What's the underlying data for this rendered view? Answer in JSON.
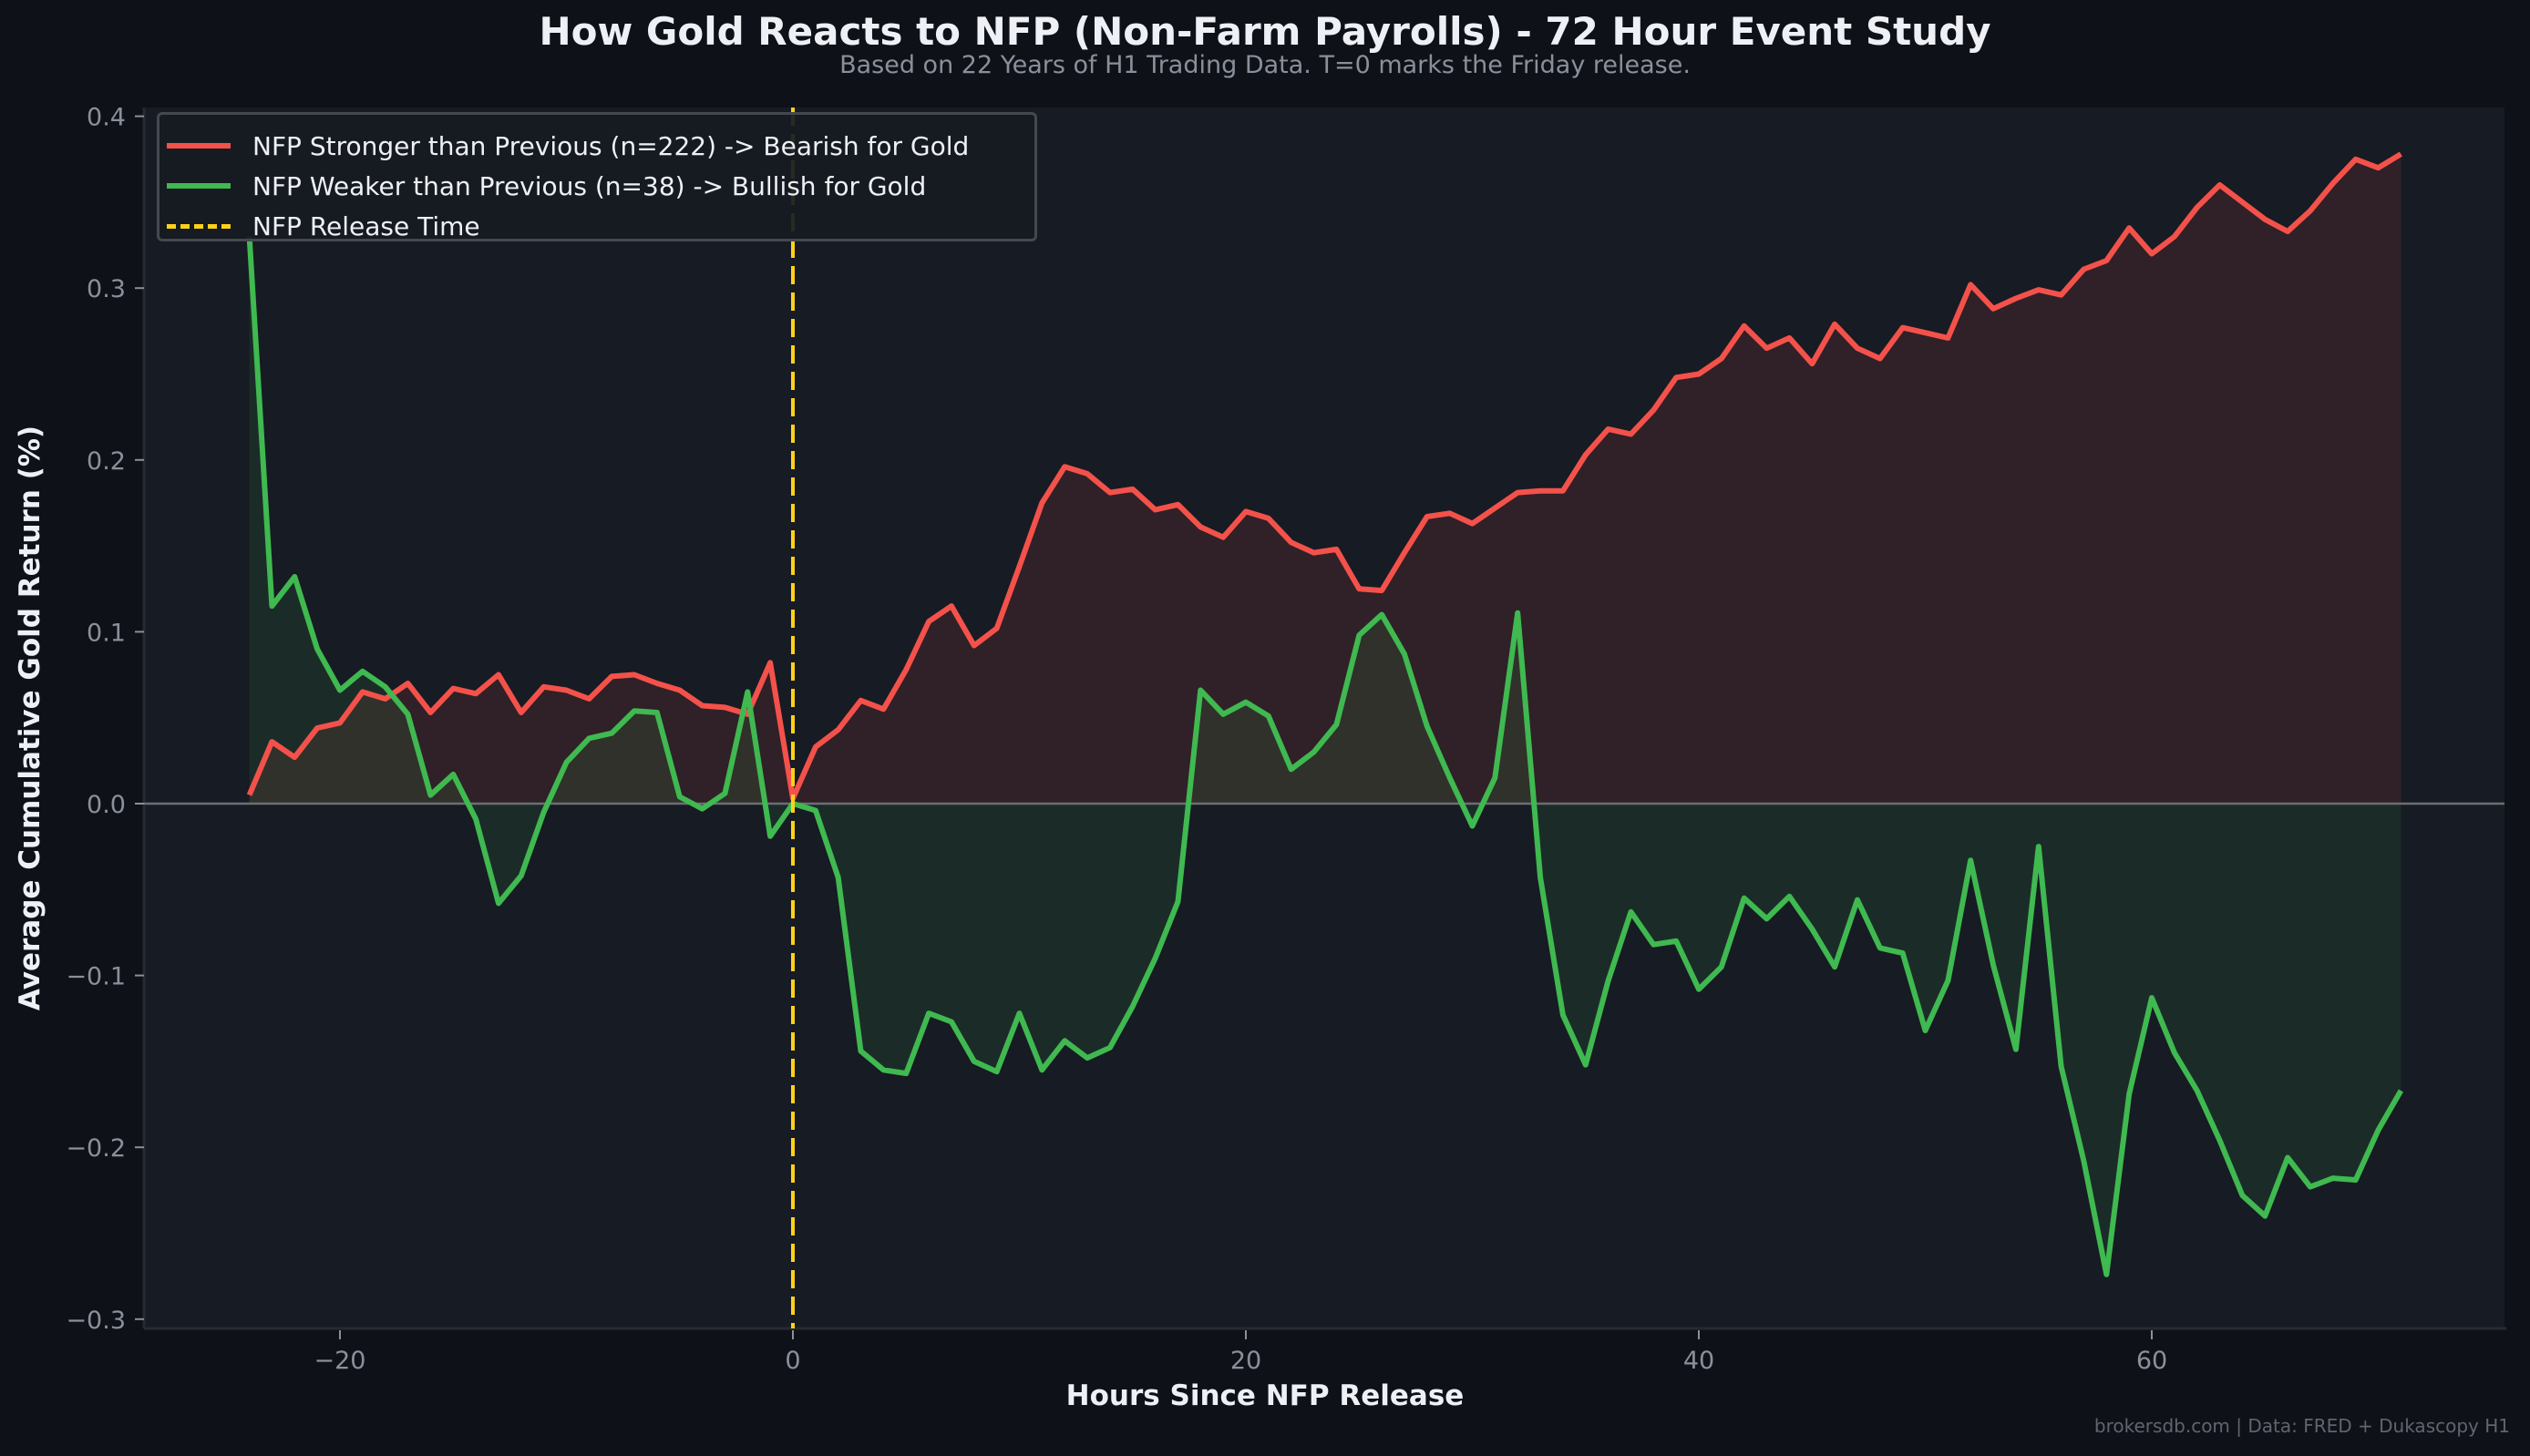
{
  "header": {
    "title": "How Gold Reacts to NFP (Non-Farm Payrolls) - 72 Hour Event Study",
    "subtitle": "Based on 22 Years of H1 Trading Data. T=0 marks the Friday release."
  },
  "axes": {
    "xlabel": "Hours Since NFP Release",
    "ylabel": "Average Cumulative Gold Return (%)",
    "x_ticks": [
      "−20",
      "0",
      "20",
      "40",
      "60"
    ],
    "x_tick_values": [
      -20,
      0,
      20,
      40,
      60
    ],
    "y_ticks": [
      "0.4",
      "0.3",
      "0.2",
      "0.1",
      "0.0",
      "−0.1",
      "−0.2",
      "−0.3"
    ],
    "y_tick_values": [
      0.4,
      0.3,
      0.2,
      0.1,
      0.0,
      -0.1,
      -0.2,
      -0.3
    ]
  },
  "legend": {
    "items": [
      {
        "label": "NFP Stronger than Previous (n=222) -> Bearish for Gold",
        "color": "#f4514b",
        "style": "solid"
      },
      {
        "label": "NFP Weaker than Previous (n=38) -> Bullish for Gold",
        "color": "#3fb950",
        "style": "solid"
      },
      {
        "label": "NFP Release Time",
        "color": "#ffd21a",
        "style": "dashed"
      }
    ]
  },
  "footer": {
    "credit": "brokersdb.com  |  Data: FRED + Dukascopy H1"
  },
  "colors": {
    "background": "#0e1118",
    "plot_background": "#171b23",
    "stronger": "#f4514b",
    "weaker": "#3fb950",
    "release_line": "#ffd21a",
    "zero_line": "#6b6f75"
  },
  "chart_data": {
    "type": "line",
    "title": "How Gold Reacts to NFP (Non-Farm Payrolls) - 72 Hour Event Study",
    "subtitle": "Based on 22 Years of H1 Trading Data. T=0 marks the Friday release.",
    "xlabel": "Hours Since NFP Release",
    "ylabel": "Average Cumulative Gold Return (%)",
    "xlim": [
      -28.3,
      75.9
    ],
    "ylim": [
      -0.305,
      0.41
    ],
    "grid": false,
    "legend_position": "upper left",
    "annotations": [
      {
        "type": "vline",
        "x": 0,
        "label": "NFP Release Time",
        "style": "dashed",
        "color": "#ffd21a"
      },
      {
        "type": "hline",
        "y": 0,
        "color": "#6b6f75"
      }
    ],
    "x": [
      -24,
      -23,
      -22,
      -21,
      -20,
      -19,
      -18,
      -17,
      -16,
      -15,
      -14,
      -13,
      -12,
      -11,
      -10,
      -9,
      -8,
      -7,
      -6,
      -5,
      -4,
      -3,
      -2,
      -1,
      0,
      1,
      2,
      3,
      4,
      5,
      6,
      7,
      8,
      9,
      10,
      11,
      12,
      13,
      14,
      15,
      16,
      17,
      18,
      19,
      20,
      21,
      22,
      23,
      24,
      25,
      26,
      27,
      28,
      29,
      30,
      31,
      32,
      33,
      34,
      35,
      36,
      37,
      38,
      39,
      40,
      41,
      42,
      43,
      44,
      45,
      46,
      47,
      48,
      49,
      50,
      51,
      52,
      53,
      54,
      55,
      56,
      57,
      58,
      59,
      60,
      61,
      62,
      63,
      64,
      65,
      66,
      67,
      68,
      69,
      70,
      71
    ],
    "series": [
      {
        "name": "NFP Stronger than Previous (n=222) -> Bearish for Gold",
        "color": "#f4514b",
        "values": [
          0.005,
          0.036,
          0.027,
          0.044,
          0.047,
          0.065,
          0.061,
          0.07,
          0.053,
          0.067,
          0.064,
          0.075,
          0.053,
          0.068,
          0.066,
          0.061,
          0.074,
          0.075,
          0.07,
          0.066,
          0.057,
          0.056,
          0.052,
          0.082,
          0.003,
          0.033,
          0.043,
          0.06,
          0.055,
          0.078,
          0.106,
          0.115,
          0.092,
          0.102,
          0.138,
          0.175,
          0.196,
          0.192,
          0.181,
          0.183,
          0.171,
          0.174,
          0.161,
          0.155,
          0.17,
          0.166,
          0.152,
          0.146,
          0.148,
          0.125,
          0.124,
          0.146,
          0.167,
          0.169,
          0.163,
          0.172,
          0.181,
          0.182,
          0.182,
          0.203,
          0.218,
          0.215,
          0.229,
          0.248,
          0.25,
          0.259,
          0.278,
          0.265,
          0.271,
          0.256,
          0.279,
          0.265,
          0.259,
          0.277,
          0.274,
          0.271,
          0.302,
          0.288,
          0.294,
          0.299,
          0.296,
          0.311,
          0.316,
          0.335,
          0.32,
          0.33,
          0.347,
          0.36,
          0.35,
          0.34,
          0.333,
          0.345,
          0.361,
          0.375,
          0.37,
          0.378
        ]
      },
      {
        "name": "NFP Weaker than Previous (n=38) -> Bullish for Gold",
        "color": "#3fb950",
        "values": [
          0.33,
          0.115,
          0.132,
          0.09,
          0.066,
          0.077,
          0.068,
          0.052,
          0.005,
          0.017,
          -0.009,
          -0.058,
          -0.042,
          -0.005,
          0.024,
          0.038,
          0.041,
          0.054,
          0.053,
          0.004,
          -0.003,
          0.006,
          0.065,
          -0.019,
          0.0,
          -0.004,
          -0.043,
          -0.144,
          -0.155,
          -0.157,
          -0.122,
          -0.127,
          -0.15,
          -0.156,
          -0.122,
          -0.155,
          -0.138,
          -0.148,
          -0.142,
          -0.118,
          -0.09,
          -0.057,
          0.066,
          0.052,
          0.059,
          0.051,
          0.02,
          0.03,
          0.046,
          0.098,
          0.11,
          0.087,
          0.045,
          0.015,
          -0.013,
          0.015,
          0.111,
          -0.043,
          -0.123,
          -0.152,
          -0.103,
          -0.063,
          -0.082,
          -0.08,
          -0.108,
          -0.095,
          -0.055,
          -0.067,
          -0.054,
          -0.073,
          -0.095,
          -0.056,
          -0.084,
          -0.087,
          -0.132,
          -0.103,
          -0.033,
          -0.094,
          -0.143,
          -0.025,
          -0.153,
          -0.208,
          -0.274,
          -0.169,
          -0.113,
          -0.145,
          -0.167,
          -0.196,
          -0.228,
          -0.24,
          -0.206,
          -0.223,
          -0.218,
          -0.219,
          -0.19,
          -0.167
        ]
      }
    ]
  }
}
